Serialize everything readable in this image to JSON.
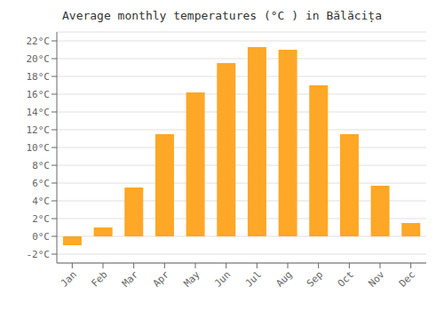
{
  "chart_data": {
    "type": "bar",
    "title": "Average monthly temperatures (°C ) in Bălăcița",
    "categories": [
      "Jan",
      "Feb",
      "Mar",
      "Apr",
      "May",
      "Jun",
      "Jul",
      "Aug",
      "Sep",
      "Oct",
      "Nov",
      "Dec"
    ],
    "values": [
      -1.0,
      1.0,
      5.5,
      11.5,
      16.2,
      19.5,
      21.3,
      21.0,
      17.0,
      11.5,
      5.7,
      1.5
    ],
    "color": "#FFA726",
    "ylim": [
      -3,
      23
    ],
    "yticks": [
      {
        "value": -2,
        "label": "-2°C"
      },
      {
        "value": 0,
        "label": "0°C"
      },
      {
        "value": 2,
        "label": "2°C"
      },
      {
        "value": 4,
        "label": "4°C"
      },
      {
        "value": 6,
        "label": "6°C"
      },
      {
        "value": 8,
        "label": "8°C"
      },
      {
        "value": 10,
        "label": "10°C"
      },
      {
        "value": 12,
        "label": "12°C"
      },
      {
        "value": 14,
        "label": "14°C"
      },
      {
        "value": 16,
        "label": "16°C"
      },
      {
        "value": 18,
        "label": "18°C"
      },
      {
        "value": 20,
        "label": "20°C"
      },
      {
        "value": 22,
        "label": "22°C"
      }
    ],
    "grid": true
  }
}
